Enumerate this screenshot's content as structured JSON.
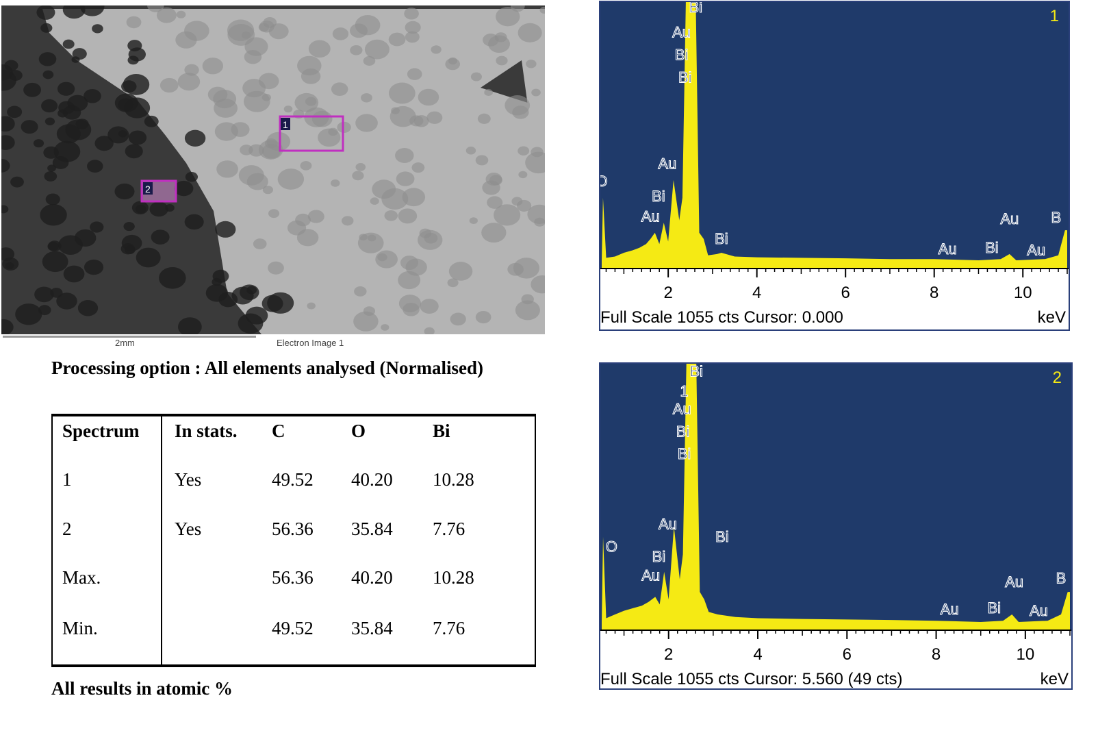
{
  "electron_image": {
    "scale_bar_label": "2mm",
    "caption": "Electron Image 1",
    "markers": [
      {
        "label": "1",
        "color": "#c02fc0"
      },
      {
        "label": "2",
        "color": "#c02fc0"
      }
    ]
  },
  "processing_option": "Processing option : All elements analysed (Normalised)",
  "table": {
    "headers": [
      "Spectrum",
      "In stats.",
      "C",
      "O",
      "Bi"
    ],
    "rows": [
      [
        "1",
        "Yes",
        "49.52",
        "40.20",
        "10.28"
      ],
      [
        "2",
        "Yes",
        "56.36",
        "35.84",
        "7.76"
      ],
      [
        "Max.",
        "",
        "56.36",
        "40.20",
        "10.28"
      ],
      [
        "Min.",
        "",
        "49.52",
        "35.84",
        "7.76"
      ]
    ]
  },
  "footnote": "All results in atomic %",
  "colors": {
    "plot_bg": "#1f3a6a",
    "spectrum": "#f5ea14",
    "label": "#ffffff",
    "spectrum_id": "#f5ea14"
  },
  "chart_data": [
    {
      "type": "area",
      "spectrum_id": "1",
      "xlabel": "keV",
      "xlim": [
        0.5,
        11.0
      ],
      "ylim": [
        0,
        1055
      ],
      "x_ticks": [
        "2",
        "4",
        "6",
        "8",
        "10"
      ],
      "status": "Full Scale 1055 cts Cursor: 0.000",
      "unit": "keV",
      "points": [
        [
          0.5,
          30
        ],
        [
          0.53,
          280
        ],
        [
          0.6,
          40
        ],
        [
          0.8,
          45
        ],
        [
          1.0,
          60
        ],
        [
          1.2,
          70
        ],
        [
          1.35,
          80
        ],
        [
          1.5,
          95
        ],
        [
          1.6,
          115
        ],
        [
          1.7,
          140
        ],
        [
          1.8,
          95
        ],
        [
          1.9,
          180
        ],
        [
          2.0,
          105
        ],
        [
          2.12,
          350
        ],
        [
          2.25,
          190
        ],
        [
          2.32,
          280
        ],
        [
          2.4,
          1100
        ],
        [
          2.62,
          1100
        ],
        [
          2.7,
          140
        ],
        [
          2.8,
          115
        ],
        [
          2.9,
          50
        ],
        [
          3.1,
          55
        ],
        [
          3.2,
          60
        ],
        [
          3.5,
          45
        ],
        [
          4.0,
          42
        ],
        [
          5.0,
          40
        ],
        [
          6.0,
          38
        ],
        [
          7.0,
          35
        ],
        [
          8.0,
          35
        ],
        [
          9.0,
          30
        ],
        [
          9.5,
          35
        ],
        [
          9.7,
          55
        ],
        [
          9.85,
          30
        ],
        [
          10.5,
          35
        ],
        [
          10.8,
          50
        ],
        [
          10.95,
          150
        ],
        [
          11.0,
          150
        ]
      ],
      "peak_labels": [
        {
          "text": "Bi",
          "x": 2.62,
          "y": 1020
        },
        {
          "text": "Au",
          "x": 2.3,
          "y": 920
        },
        {
          "text": "Bi",
          "x": 2.3,
          "y": 830
        },
        {
          "text": "Bi",
          "x": 2.38,
          "y": 740
        },
        {
          "text": "Au",
          "x": 1.98,
          "y": 395
        },
        {
          "text": "Bi",
          "x": 1.78,
          "y": 265
        },
        {
          "text": "Au",
          "x": 1.6,
          "y": 185
        },
        {
          "text": "O",
          "x": 0.5,
          "y": 325
        },
        {
          "text": "Bi",
          "x": 3.2,
          "y": 95
        },
        {
          "text": "Au",
          "x": 8.3,
          "y": 55
        },
        {
          "text": "Bi",
          "x": 9.3,
          "y": 60
        },
        {
          "text": "Au",
          "x": 9.7,
          "y": 175
        },
        {
          "text": "Au",
          "x": 10.3,
          "y": 50
        },
        {
          "text": "B",
          "x": 10.75,
          "y": 180
        }
      ]
    },
    {
      "type": "area",
      "spectrum_id": "2",
      "xlabel": "keV",
      "xlim": [
        0.5,
        11.0
      ],
      "ylim": [
        0,
        1055
      ],
      "x_ticks": [
        "2",
        "4",
        "6",
        "8",
        "10"
      ],
      "status": "Full Scale 1055 cts Cursor: 5.560  (49 cts)",
      "unit": "keV",
      "points": [
        [
          0.5,
          30
        ],
        [
          0.53,
          370
        ],
        [
          0.6,
          45
        ],
        [
          0.8,
          60
        ],
        [
          1.0,
          75
        ],
        [
          1.2,
          85
        ],
        [
          1.4,
          95
        ],
        [
          1.55,
          110
        ],
        [
          1.7,
          130
        ],
        [
          1.8,
          100
        ],
        [
          1.9,
          230
        ],
        [
          2.0,
          120
        ],
        [
          2.12,
          410
        ],
        [
          2.25,
          200
        ],
        [
          2.32,
          300
        ],
        [
          2.4,
          1100
        ],
        [
          2.62,
          1100
        ],
        [
          2.7,
          150
        ],
        [
          2.8,
          120
        ],
        [
          2.9,
          70
        ],
        [
          3.1,
          60
        ],
        [
          3.5,
          50
        ],
        [
          4.0,
          45
        ],
        [
          5.0,
          42
        ],
        [
          6.0,
          40
        ],
        [
          7.0,
          38
        ],
        [
          8.0,
          35
        ],
        [
          9.0,
          30
        ],
        [
          9.5,
          35
        ],
        [
          9.7,
          60
        ],
        [
          9.85,
          30
        ],
        [
          10.5,
          35
        ],
        [
          10.8,
          60
        ],
        [
          10.95,
          150
        ],
        [
          11.0,
          150
        ]
      ],
      "peak_labels": [
        {
          "text": "Bi",
          "x": 2.62,
          "y": 1010
        },
        {
          "text": "1",
          "x": 2.35,
          "y": 930
        },
        {
          "text": "Au",
          "x": 2.3,
          "y": 860
        },
        {
          "text": "Bi",
          "x": 2.32,
          "y": 770
        },
        {
          "text": "Bi",
          "x": 2.35,
          "y": 680
        },
        {
          "text": "Au",
          "x": 1.98,
          "y": 400
        },
        {
          "text": "Bi",
          "x": 1.78,
          "y": 270
        },
        {
          "text": "Au",
          "x": 1.6,
          "y": 195
        },
        {
          "text": "O",
          "x": 0.72,
          "y": 310
        },
        {
          "text": "Bi",
          "x": 3.2,
          "y": 350
        },
        {
          "text": "Au",
          "x": 8.3,
          "y": 60
        },
        {
          "text": "Bi",
          "x": 9.3,
          "y": 65
        },
        {
          "text": "Au",
          "x": 9.75,
          "y": 170
        },
        {
          "text": "Au",
          "x": 10.3,
          "y": 55
        },
        {
          "text": "B",
          "x": 10.8,
          "y": 185
        }
      ]
    }
  ]
}
